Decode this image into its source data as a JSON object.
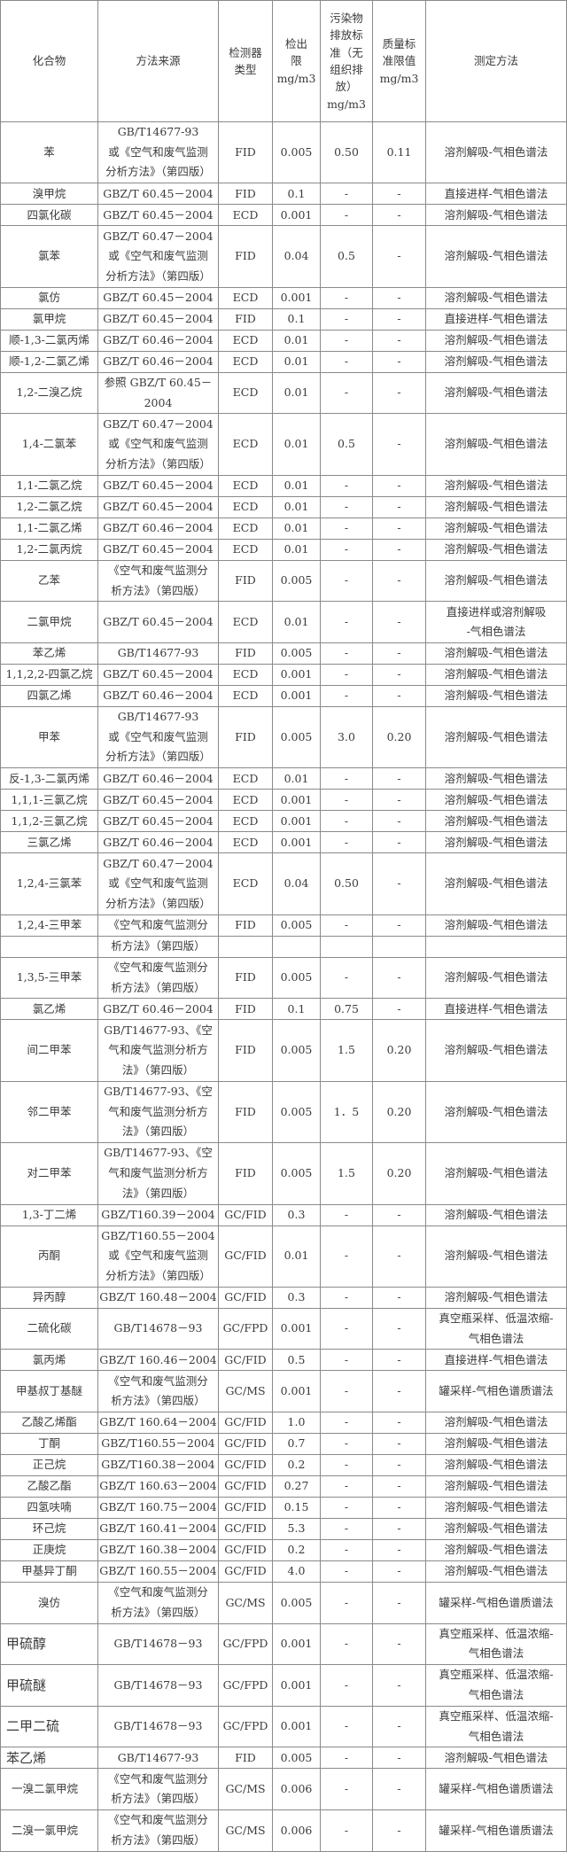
{
  "table": {
    "headers": [
      "化合物",
      "方法来源",
      "检测器\n类型",
      "检出\n限\nmg/m3",
      "污染物\n排放标\n准（无\n组织排\n放）\nmg/m3",
      "质量标\n准限值\nmg/m3",
      "测定方法"
    ],
    "rows": [
      [
        "苯",
        "GB/T14677-93\n或《空气和废气监测\n分析方法》（第四版）",
        "FID",
        "0.005",
        "0.50",
        "0.11",
        "溶剂解吸-气相色谱法"
      ],
      [
        "溴甲烷",
        "GBZ/T 60.45－2004",
        "FID",
        "0.1",
        "-",
        "-",
        "直接进样-气相色谱法"
      ],
      [
        "四氯化碳",
        "GBZ/T 60.45－2004",
        "ECD",
        "0.001",
        "-",
        "-",
        "溶剂解吸-气相色谱法"
      ],
      [
        "氯苯",
        "GBZ/T 60.47－2004\n或《空气和废气监测\n分析方法》（第四版）",
        "FID",
        "0.04",
        "0.5",
        "-",
        "溶剂解吸-气相色谱法"
      ],
      [
        "氯仿",
        "GBZ/T 60.45－2004",
        "ECD",
        "0.001",
        "-",
        "-",
        "溶剂解吸-气相色谱法"
      ],
      [
        "氯甲烷",
        "GBZ/T 60.45－2004",
        "FID",
        "0.1",
        "-",
        "-",
        "直接进样-气相色谱法"
      ],
      [
        "顺-1,3-二氯丙烯",
        "GBZ/T 60.46－2004",
        "ECD",
        "0.01",
        "-",
        "-",
        "溶剂解吸-气相色谱法"
      ],
      [
        "顺-1,2-二氯乙烯",
        "GBZ/T 60.46－2004",
        "ECD",
        "0.01",
        "-",
        "-",
        "溶剂解吸-气相色谱法"
      ],
      [
        "1,2-二溴乙烷",
        "参照 GBZ/T 60.45－\n2004",
        "ECD",
        "0.01",
        "-",
        "-",
        "溶剂解吸-气相色谱法"
      ],
      [
        "1,4-二氯苯",
        "GBZ/T 60.47－2004\n或《空气和废气监测\n分析方法》（第四版）",
        "ECD",
        "0.01",
        "0.5",
        "-",
        "溶剂解吸-气相色谱法"
      ],
      [
        "1,1-二氯乙烷",
        "GBZ/T 60.45－2004",
        "ECD",
        "0.01",
        "-",
        "-",
        "溶剂解吸-气相色谱法"
      ],
      [
        "1,2-二氯乙烷",
        "GBZ/T 60.45－2004",
        "ECD",
        "0.01",
        "-",
        "-",
        "溶剂解吸-气相色谱法"
      ],
      [
        "1,1-二氯乙烯",
        "GBZ/T 60.46－2004",
        "ECD",
        "0.01",
        "-",
        "-",
        "溶剂解吸-气相色谱法"
      ],
      [
        "1,2-二氯丙烷",
        "GBZ/T 60.45－2004",
        "ECD",
        "0.01",
        "-",
        "-",
        "溶剂解吸-气相色谱法"
      ],
      [
        "乙苯",
        "《空气和废气监测分\n析方法》（第四版）",
        "FID",
        "0.005",
        "-",
        "-",
        "溶剂解吸-气相色谱法"
      ],
      [
        "二氯甲烷",
        "GBZ/T 60.45－2004",
        "ECD",
        "0.01",
        "-",
        "-",
        "直接进样或溶剂解吸\n-气相色谱法"
      ],
      [
        "苯乙烯",
        "GB/T14677-93",
        "FID",
        "0.005",
        "-",
        "-",
        "溶剂解吸-气相色谱法"
      ],
      [
        "1,1,2,2-四氯乙烷",
        "GBZ/T 60.45－2004",
        "ECD",
        "0.001",
        "-",
        "-",
        "溶剂解吸-气相色谱法"
      ],
      [
        "四氯乙烯",
        "GBZ/T 60.46－2004",
        "ECD",
        "0.001",
        "-",
        "-",
        "溶剂解吸-气相色谱法"
      ],
      [
        "甲苯",
        "GB/T14677-93\n或《空气和废气监测\n分析方法》（第四版）",
        "FID",
        "0.005",
        "3.0",
        "0.20",
        "溶剂解吸-气相色谱法"
      ],
      [
        "反-1,3-二氯丙烯",
        "GBZ/T 60.46－2004",
        "ECD",
        "0.01",
        "-",
        "-",
        "溶剂解吸-气相色谱法"
      ],
      [
        "1,1,1-三氯乙烷",
        "GBZ/T 60.45－2004",
        "ECD",
        "0.001",
        "-",
        "-",
        "溶剂解吸-气相色谱法"
      ],
      [
        "1,1,2-三氯乙烷",
        "GBZ/T 60.45－2004",
        "ECD",
        "0.001",
        "-",
        "-",
        "溶剂解吸-气相色谱法"
      ],
      [
        "三氯乙烯",
        "GBZ/T 60.46－2004",
        "ECD",
        "0.001",
        "-",
        "-",
        "溶剂解吸-气相色谱法"
      ],
      [
        "1,2,4-三氯苯",
        "GBZ/T 60.47－2004\n或《空气和废气监测\n分析方法》（第四版）",
        "ECD",
        "0.04",
        "0.50",
        "-",
        "溶剂解吸-气相色谱法"
      ],
      [
        "1,2,4-三甲苯",
        "《空气和废气监测分",
        "FID",
        "0.005",
        "-",
        "-",
        "溶剂解吸-气相色谱法"
      ],
      [
        "",
        "析方法》（第四版）",
        "",
        "",
        "",
        "",
        ""
      ],
      [
        "1,3,5-三甲苯",
        "《空气和废气监测分\n析方法》（第四版）",
        "FID",
        "0.005",
        "-",
        "-",
        "溶剂解吸-气相色谱法"
      ],
      [
        "氯乙烯",
        "GBZ/T 60.46－2004",
        "FID",
        "0.1",
        "0.75",
        "-",
        "直接进样-气相色谱法"
      ],
      [
        "间二甲苯",
        "GB/T14677-93、《空\n气和废气监测分析方\n法》（第四版）",
        "FID",
        "0.005",
        "1.5",
        "0.20",
        "溶剂解吸-气相色谱法"
      ],
      [
        "邻二甲苯",
        "GB/T14677-93、《空\n气和废气监测分析方\n法》（第四版）",
        "FID",
        "0.005",
        "1．5",
        "0.20",
        "溶剂解吸-气相色谱法"
      ],
      [
        "对二甲苯",
        "GB/T14677-93、《空\n气和废气监测分析方\n法》（第四版）",
        "FID",
        "0.005",
        "1.5",
        "0.20",
        "溶剂解吸-气相色谱法"
      ],
      [
        "1,3-丁二烯",
        "GBZ/T160.39－2004",
        "GC/FID",
        "0.3",
        "-",
        "-",
        "溶剂解吸-气相色谱法"
      ],
      [
        "丙酮",
        "GBZ/T160.55－2004\n或《空气和废气监测\n分析方法》（第四版）",
        "GC/FID",
        "0.01",
        "-",
        "-",
        "溶剂解吸-气相色谱法"
      ],
      [
        "异丙醇",
        "GBZ/T 160.48－2004",
        "GC/FID",
        "0.3",
        "-",
        "-",
        "溶剂解吸-气相色谱法"
      ],
      [
        "二硫化碳",
        "GB/T14678－93",
        "GC/FPD",
        "0.001",
        "-",
        "-",
        "真空瓶采样、低温浓缩-\n气相色谱法"
      ],
      [
        "氯丙烯",
        "GBZ/T 160.46－2004",
        "GC/FID",
        "0.5",
        "-",
        "-",
        "直接进样-气相色谱法"
      ],
      [
        "甲基叔丁基醚",
        "《空气和废气监测分\n析方法》（第四版）",
        "GC/MS",
        "0.001",
        "-",
        "-",
        "罐采样-气相色谱质谱法"
      ],
      [
        "乙酸乙烯酯",
        "GBZ/T 160.64－2004",
        "GC/FID",
        "1.0",
        "-",
        "-",
        "溶剂解吸-气相色谱法"
      ],
      [
        "丁酮",
        "GBZ/T160.55－2004",
        "GC/FID",
        "0.7",
        "-",
        "-",
        "溶剂解吸-气相色谱法"
      ],
      [
        "正己烷",
        "GBZ/T160.38－2004",
        "GC/FID",
        "0.2",
        "-",
        "-",
        "溶剂解吸-气相色谱法"
      ],
      [
        "乙酸乙酯",
        "GBZ/T 160.63－2004",
        "GC/FID",
        "0.27",
        "-",
        "-",
        "溶剂解吸-气相色谱法"
      ],
      [
        "四氢呋喃",
        "GBZ/T 160.75－2004",
        "GC/FID",
        "0.15",
        "-",
        "-",
        "溶剂解吸-气相色谱法"
      ],
      [
        "环己烷",
        "GBZ/T 160.41－2004",
        "GC/FID",
        "5.3",
        "-",
        "-",
        "溶剂解吸-气相色谱法"
      ],
      [
        "正庚烷",
        "GBZ/T 160.38－2004",
        "GC/FID",
        "0.2",
        "-",
        "-",
        "溶剂解吸-气相色谱法"
      ],
      [
        "甲基异丁酮",
        "GBZ/T 160.55－2004",
        "GC/FID",
        "4.0",
        "-",
        "-",
        "溶剂解吸-气相色谱法"
      ],
      [
        "溴仿",
        "《空气和废气监测分\n析方法》（第四版）",
        "GC/MS",
        "0.005",
        "-",
        "-",
        "罐采样-气相色谱质谱法"
      ],
      [
        "甲硫醇",
        "GB/T14678－93",
        "GC/FPD",
        "0.001",
        "-",
        "-",
        "真空瓶采样、低温浓缩-\n气相色谱法"
      ],
      [
        "甲硫醚",
        "GB/T14678－93",
        "GC/FPD",
        "0.001",
        "-",
        "-",
        "真空瓶采样、低温浓缩-\n气相色谱法"
      ],
      [
        "二甲二硫",
        "GB/T14678－93",
        "GC/FPD",
        "0.001",
        "-",
        "-",
        "真空瓶采样、低温浓缩-\n气相色谱法"
      ],
      [
        "苯乙烯",
        "GB/T14677-93",
        "FID",
        "0.005",
        "-",
        "-",
        "溶剂解吸-气相色谱法"
      ],
      [
        "一溴二氯甲烷",
        "《空气和废气监测分\n析方法》（第四版）",
        "GC/MS",
        "0.006",
        "-",
        "-",
        "罐采样-气相色谱质谱法"
      ],
      [
        "二溴一氯甲烷",
        "《空气和废气监测分\n析方法》（第四版）",
        "GC/MS",
        "0.006",
        "-",
        "-",
        "罐采样-气相色谱质谱法"
      ]
    ]
  }
}
